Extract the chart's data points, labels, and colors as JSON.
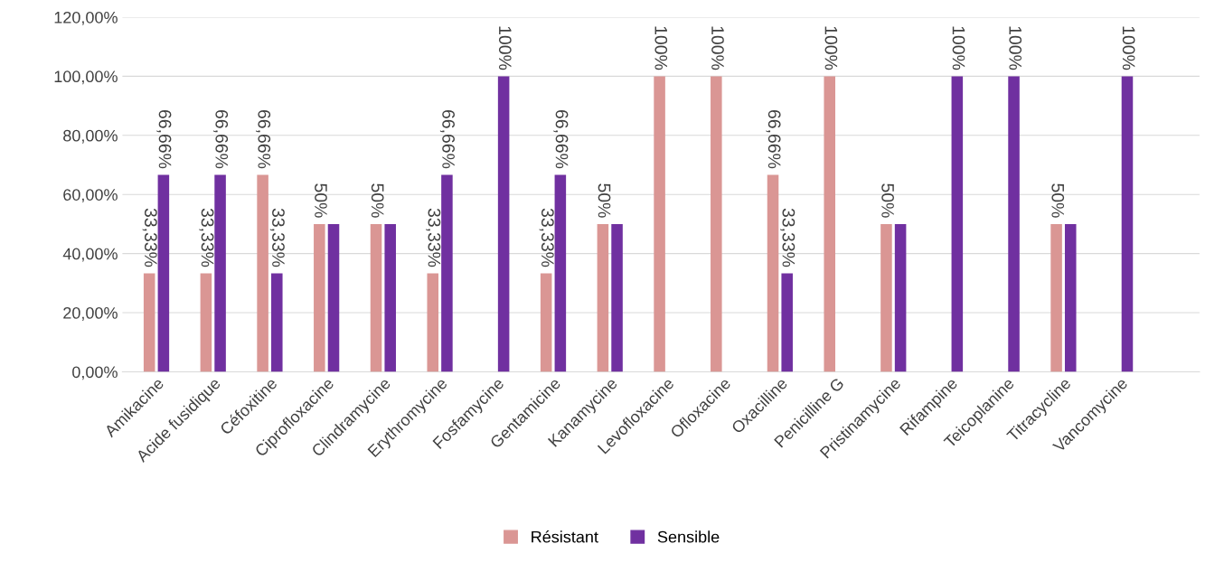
{
  "chart_data": {
    "type": "bar",
    "categories": [
      "Amikacine",
      "Acide fusidique",
      "Céfoxitine",
      "Ciprofloxacine",
      "Clindramycine",
      "Erythromycine",
      "Fosfamycine",
      "Gentamicine",
      "Kanamycine",
      "Levofloxacine",
      "Ofloxacine",
      "Oxacilline",
      "Penicilline G",
      "Pristinamycine",
      "Rifampine",
      "Teicoplanine",
      "Titracycline",
      "Vancomycine"
    ],
    "series": [
      {
        "name": "Résistant",
        "color": "#da9694",
        "values": [
          33.33,
          33.33,
          66.66,
          50,
          50,
          33.33,
          null,
          33.33,
          50,
          100,
          100,
          66.66,
          100,
          50,
          null,
          null,
          50,
          null
        ],
        "value_labels": [
          "33,33%",
          "33,33%",
          "66,66%",
          "50%",
          "50%",
          "33,33%",
          null,
          "33,33%",
          "50%",
          "100%",
          "100%",
          "66,66%",
          "100%",
          "50%",
          null,
          null,
          "50%",
          null
        ]
      },
      {
        "name": "Sensible",
        "color": "#7030a0",
        "values": [
          66.66,
          66.66,
          33.33,
          50,
          50,
          66.66,
          100,
          66.66,
          50,
          null,
          null,
          33.33,
          null,
          50,
          100,
          100,
          50,
          100
        ],
        "value_labels": [
          "66,66%",
          "66,66%",
          "33,33%",
          null,
          null,
          "66,66%",
          "100%",
          "66,66%",
          null,
          null,
          null,
          "33,33%",
          null,
          null,
          "100%",
          "100%",
          null,
          "100%"
        ]
      }
    ],
    "ylim": [
      0,
      120
    ],
    "yticks": [
      {
        "value": 0,
        "label": "0,00%"
      },
      {
        "value": 20,
        "label": "20,00%"
      },
      {
        "value": 40,
        "label": "40,00%"
      },
      {
        "value": 60,
        "label": "60,00%"
      },
      {
        "value": 80,
        "label": "80,00%"
      },
      {
        "value": 100,
        "label": "100,00%"
      },
      {
        "value": 120,
        "label": "120,00%"
      }
    ],
    "grid": "y",
    "legend": "bottom"
  }
}
